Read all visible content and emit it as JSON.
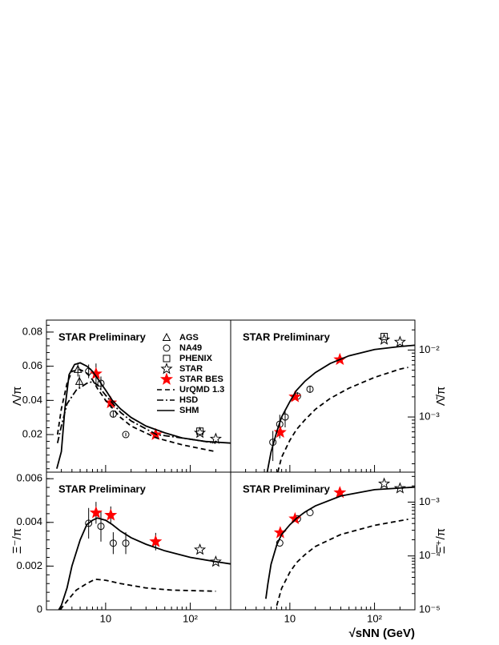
{
  "x_label": "√sNN (GeV)",
  "xlim": [
    2,
    300
  ],
  "xticks": [
    {
      "value": 10,
      "label": "10"
    },
    {
      "value": 100,
      "label": "10²"
    }
  ],
  "chart_data": [
    {
      "type": "line",
      "annotation": "STAR Preliminary",
      "y_label": "Λ/π",
      "ylog": false,
      "y_side": "left",
      "legend": true,
      "ylim": [
        -0.002,
        0.087
      ],
      "yticks": [
        0.02,
        0.04,
        0.06,
        0.08
      ],
      "series": [
        {
          "name": "AGS",
          "marker": "triangle",
          "color": "#000000",
          "x": [
            4.7,
            4.9
          ],
          "values": [
            0.058,
            0.051
          ],
          "errors": [
            0.004,
            0.004
          ]
        },
        {
          "name": "NA49",
          "marker": "circle",
          "color": "#000000",
          "x": [
            6.3,
            8.8,
            12.3,
            17.3
          ],
          "values": [
            0.057,
            0.05,
            0.032,
            0.02
          ],
          "errors": [
            0.004,
            0.004,
            0.002,
            0.001
          ]
        },
        {
          "name": "PHENIX",
          "marker": "square",
          "color": "#000000",
          "x": [
            130
          ],
          "values": [
            0.022
          ]
        },
        {
          "name": "STAR",
          "marker": "star",
          "color": "#000000",
          "x": [
            130,
            200
          ],
          "values": [
            0.021,
            0.0175
          ]
        },
        {
          "name": "STAR BES",
          "marker": "star-filled",
          "color": "#ff0000",
          "x": [
            7.7,
            11.5,
            39
          ],
          "values": [
            0.0556,
            0.0386,
            0.02
          ],
          "errors": [
            0.006,
            0.003,
            0.001
          ]
        },
        {
          "name": "UrQMD 1.3",
          "line": "dashed",
          "color": "#000000",
          "x": [
            2.7,
            3,
            3.5,
            4,
            5,
            6,
            7,
            8,
            10,
            15,
            20,
            40,
            80,
            200
          ],
          "values": [
            0.02,
            0.035,
            0.05,
            0.057,
            0.058,
            0.056,
            0.052,
            0.047,
            0.04,
            0.03,
            0.025,
            0.018,
            0.014,
            0.01
          ]
        },
        {
          "name": "HSD",
          "line": "dashdot",
          "color": "#000000",
          "x": [
            2.7,
            3,
            3.5,
            4.5,
            6,
            7,
            8,
            10,
            15,
            20,
            40,
            80,
            200
          ],
          "values": [
            0.015,
            0.025,
            0.038,
            0.046,
            0.05,
            0.051,
            0.049,
            0.043,
            0.033,
            0.028,
            0.02,
            0.018,
            0.015
          ]
        },
        {
          "name": "SHM",
          "line": "solid",
          "color": "#000000",
          "x": [
            2.65,
            3,
            3.3,
            3.7,
            4.3,
            5,
            6,
            7,
            8,
            10,
            12,
            15,
            20,
            30,
            50,
            80,
            150,
            300
          ],
          "values": [
            0,
            0.01,
            0.035,
            0.055,
            0.061,
            0.062,
            0.06,
            0.057,
            0.053,
            0.046,
            0.04,
            0.035,
            0.03,
            0.025,
            0.021,
            0.018,
            0.016,
            0.015
          ]
        }
      ]
    },
    {
      "type": "line",
      "annotation": "STAR Preliminary",
      "y_label": "Λ̄/π",
      "ylog": true,
      "y_side": "right",
      "ylim": [
        0.00015,
        0.028
      ],
      "yticks": [
        {
          "value": 0.001,
          "label": "10⁻³"
        },
        {
          "value": 0.01,
          "label": "10⁻²"
        }
      ],
      "series": [
        {
          "marker": "circle",
          "color": "#000000",
          "x": [
            6.3,
            7.6,
            8.8,
            12.3,
            17.3
          ],
          "values": [
            0.00042,
            0.00078,
            0.001,
            0.00205,
            0.0026
          ],
          "errors": [
            0.0002,
            0.0003,
            0.0003,
            0.0003,
            0.0003
          ]
        },
        {
          "marker": "square",
          "color": "#000000",
          "x": [
            130
          ],
          "values": [
            0.0159
          ]
        },
        {
          "marker": "star",
          "color": "#000000",
          "x": [
            130,
            200
          ],
          "values": [
            0.0143,
            0.0132
          ]
        },
        {
          "marker": "star-filled",
          "color": "#ff0000",
          "x": [
            7.7,
            11.5,
            39
          ],
          "values": [
            0.00059,
            0.002,
            0.0072
          ]
        },
        {
          "line": "dashed",
          "color": "#000000",
          "x": [
            7.2,
            8,
            10,
            12,
            15,
            20,
            30,
            50,
            100,
            200,
            250
          ],
          "values": [
            0.00015,
            0.00025,
            0.00045,
            0.00065,
            0.0009,
            0.0013,
            0.0019,
            0.0027,
            0.0039,
            0.0052,
            0.0055
          ]
        },
        {
          "line": "solid",
          "color": "#000000",
          "x": [
            5.4,
            6,
            7,
            8,
            10,
            12,
            15,
            20,
            30,
            50,
            100,
            200,
            300
          ],
          "values": [
            0.00015,
            0.0003,
            0.0006,
            0.001,
            0.0017,
            0.0025,
            0.0034,
            0.0046,
            0.0063,
            0.0082,
            0.0102,
            0.0113,
            0.0118
          ]
        }
      ]
    },
    {
      "type": "line",
      "annotation": "STAR Preliminary",
      "y_label": "Ξ⁻/π",
      "ylog": false,
      "y_side": "left",
      "ylim": [
        0,
        0.0063
      ],
      "yticks": [
        0,
        0.002,
        0.004,
        0.006
      ],
      "series": [
        {
          "marker": "circle",
          "color": "#000000",
          "x": [
            6.3,
            8.8,
            12.3,
            17.3
          ],
          "values": [
            0.00396,
            0.00382,
            0.00305,
            0.00305
          ],
          "errors": [
            0.0007,
            0.0007,
            0.0005,
            0.0005
          ]
        },
        {
          "marker": "star",
          "color": "#000000",
          "x": [
            130,
            200
          ],
          "values": [
            0.00275,
            0.0022
          ]
        },
        {
          "marker": "star-filled",
          "color": "#ff0000",
          "x": [
            7.7,
            11.5,
            39
          ],
          "values": [
            0.00444,
            0.00433,
            0.00312
          ],
          "errors": [
            0.0005,
            0.0004,
            0.0004
          ]
        },
        {
          "line": "dashed",
          "color": "#000000",
          "x": [
            2.9,
            3.5,
            4.5,
            6,
            7.5,
            10,
            15,
            30,
            60,
            200
          ],
          "values": [
            0,
            0.0004,
            0.0009,
            0.0012,
            0.0014,
            0.00135,
            0.0012,
            0.001,
            0.0009,
            0.00085
          ]
        },
        {
          "line": "solid",
          "color": "#000000",
          "x": [
            2.8,
            3,
            3.5,
            4,
            5,
            6,
            7,
            8,
            10,
            12,
            15,
            20,
            30,
            50,
            100,
            200,
            300
          ],
          "values": [
            0,
            0.0002,
            0.001,
            0.002,
            0.0032,
            0.0039,
            0.0041,
            0.0042,
            0.0041,
            0.0039,
            0.0036,
            0.0033,
            0.003,
            0.0027,
            0.0024,
            0.0022,
            0.0021
          ]
        }
      ]
    },
    {
      "type": "line",
      "annotation": "STAR Preliminary",
      "y_label": "Ξ̄⁺/π",
      "ylog": true,
      "y_side": "right",
      "ylim": [
        1e-05,
        0.0036
      ],
      "yticks": [
        {
          "value": 1e-05,
          "label": "10⁻⁵"
        },
        {
          "value": 0.0001,
          "label": "10⁻⁴"
        },
        {
          "value": 0.001,
          "label": "10⁻³"
        }
      ],
      "series": [
        {
          "marker": "circle",
          "color": "#000000",
          "x": [
            7.6,
            12.3,
            17.3
          ],
          "values": [
            0.000174,
            0.00049,
            0.00064
          ]
        },
        {
          "marker": "star",
          "color": "#000000",
          "x": [
            130,
            200
          ],
          "values": [
            0.0022,
            0.0018
          ]
        },
        {
          "marker": "star-filled",
          "color": "#ff0000",
          "x": [
            7.7,
            11.5,
            39
          ],
          "values": [
            0.00027,
            0.00049,
            0.0015
          ]
        },
        {
          "line": "dashed",
          "color": "#000000",
          "x": [
            7,
            8,
            10,
            12,
            15,
            20,
            40,
            100,
            250
          ],
          "values": [
            1.2e-05,
            2.5e-05,
            5e-05,
            7.5e-05,
            0.000105,
            0.00015,
            0.00025,
            0.00037,
            0.00048
          ]
        },
        {
          "line": "solid",
          "color": "#000000",
          "x": [
            5.2,
            5.5,
            6,
            7,
            8,
            10,
            12,
            15,
            20,
            40,
            100,
            300
          ],
          "values": [
            1.6e-05,
            3e-05,
            7e-05,
            0.00016,
            0.00025,
            0.00038,
            0.0005,
            0.00065,
            0.00085,
            0.0013,
            0.0017,
            0.0019
          ]
        }
      ]
    }
  ]
}
